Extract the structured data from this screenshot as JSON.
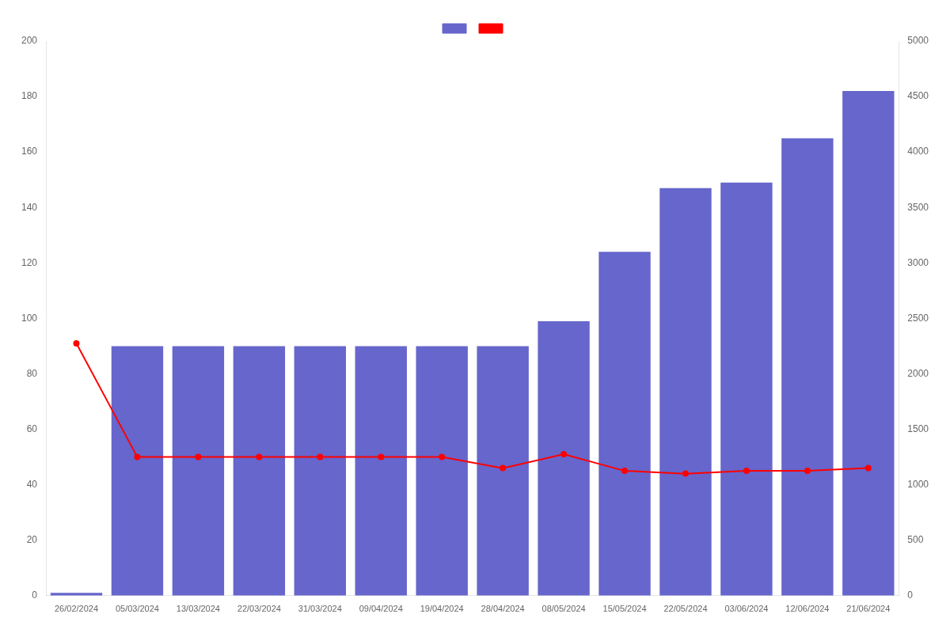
{
  "chart_data": {
    "type": "bar",
    "categories": [
      "26/02/2024",
      "05/03/2024",
      "13/03/2024",
      "22/03/2024",
      "31/03/2024",
      "09/04/2024",
      "19/04/2024",
      "28/04/2024",
      "08/05/2024",
      "15/05/2024",
      "22/05/2024",
      "03/06/2024",
      "12/06/2024",
      "21/06/2024"
    ],
    "series": [
      {
        "type": "bar",
        "color": "#6666cc",
        "values": [
          1,
          90,
          90,
          90,
          90,
          90,
          90,
          90,
          99,
          124,
          147,
          149,
          165,
          182
        ]
      },
      {
        "type": "line",
        "color": "#ff0000",
        "marker": "circle",
        "values": [
          91,
          50,
          50,
          50,
          50,
          50,
          50,
          46,
          51,
          45,
          44,
          45,
          45,
          46
        ]
      }
    ],
    "ylim": [
      0,
      200
    ],
    "yticks": [
      0,
      20,
      40,
      60,
      80,
      100,
      120,
      140,
      160,
      180,
      200
    ],
    "y2lim": [
      0,
      5000
    ],
    "y2ticks": [
      0,
      500,
      1000,
      1500,
      2000,
      2500,
      3000,
      3500,
      4000,
      4500,
      5000
    ],
    "grid": false,
    "legend": "top"
  }
}
